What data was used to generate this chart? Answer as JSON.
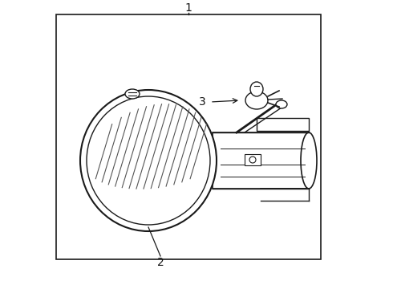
{
  "bg_color": "#ffffff",
  "line_color": "#1a1a1a",
  "label_color": "#111111",
  "border": [
    0.14,
    0.06,
    0.7,
    0.88
  ],
  "label1_text": "1",
  "label2_text": "2",
  "label3_text": "3"
}
